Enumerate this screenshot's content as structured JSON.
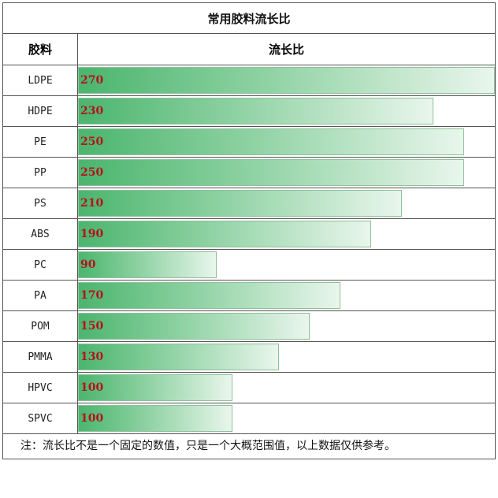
{
  "table": {
    "title": "常用胶料流长比",
    "col_material": "胶料",
    "col_ratio": "流长比",
    "footnote": "注：流长比不是一个固定的数值，只是一个大概范围值，以上数据仅供参考。"
  },
  "colors": {
    "bar_start": "#4bb56e",
    "bar_end": "#e9f6ec",
    "value_text": "#b5121b"
  },
  "chart_data": {
    "type": "bar",
    "orientation": "horizontal",
    "title": "常用胶料流长比",
    "xlabel": "流长比",
    "ylabel": "胶料",
    "categories": [
      "LDPE",
      "HDPE",
      "PE",
      "PP",
      "PS",
      "ABS",
      "PC",
      "PA",
      "POM",
      "PMMA",
      "HPVC",
      "SPVC"
    ],
    "values": [
      270,
      230,
      250,
      250,
      210,
      190,
      90,
      170,
      150,
      130,
      100,
      100
    ],
    "xlim": [
      0,
      270
    ],
    "grid": false,
    "data_labels": true
  }
}
